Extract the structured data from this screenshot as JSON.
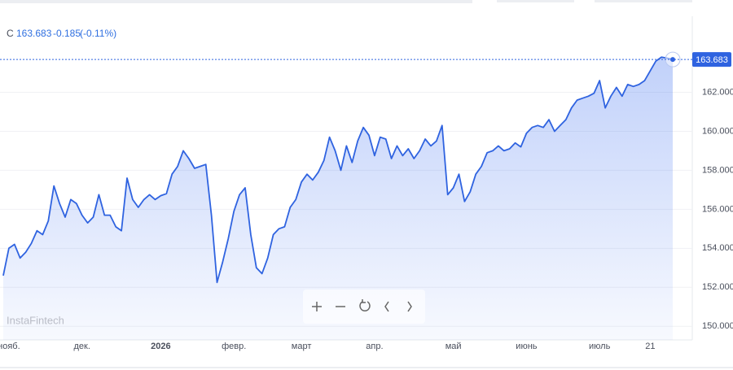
{
  "chart_data": {
    "type": "line",
    "header": {
      "symbol": "C",
      "last": "163.683",
      "change": "-0.185",
      "change_pct": "(-0.11%)"
    },
    "watermark": "InstaFintech",
    "last_price": {
      "value": 163.683,
      "label": "163.683"
    },
    "categories": [
      null,
      "нояб.",
      null,
      null,
      null,
      null,
      null,
      null,
      null,
      null,
      null,
      null,
      null,
      null,
      "дек.",
      null,
      null,
      null,
      null,
      null,
      null,
      null,
      null,
      null,
      null,
      null,
      null,
      null,
      "2026",
      null,
      null,
      null,
      null,
      null,
      null,
      null,
      null,
      null,
      null,
      null,
      null,
      "февр.",
      null,
      null,
      null,
      null,
      null,
      null,
      null,
      null,
      null,
      null,
      null,
      "март",
      null,
      null,
      null,
      null,
      null,
      null,
      null,
      null,
      null,
      null,
      null,
      null,
      "апр.",
      null,
      null,
      null,
      null,
      null,
      null,
      null,
      null,
      null,
      null,
      null,
      null,
      null,
      "май",
      null,
      null,
      null,
      null,
      null,
      null,
      null,
      null,
      null,
      null,
      null,
      null,
      "июнь",
      null,
      null,
      null,
      null,
      null,
      null,
      null,
      null,
      null,
      null,
      null,
      null,
      "июль",
      null,
      null,
      null,
      null,
      null,
      null,
      null,
      null,
      "21",
      null,
      null,
      null,
      null
    ],
    "series": [
      {
        "color": "#2f63e0",
        "values": [
          152.6,
          154.0,
          154.2,
          153.5,
          153.8,
          154.25,
          154.9,
          154.7,
          155.4,
          157.2,
          156.3,
          155.6,
          156.5,
          156.3,
          155.7,
          155.3,
          155.6,
          156.75,
          155.7,
          155.7,
          155.1,
          154.9,
          157.6,
          156.5,
          156.1,
          156.5,
          156.75,
          156.5,
          156.7,
          156.8,
          157.8,
          158.2,
          159.0,
          158.6,
          158.1,
          158.2,
          158.3,
          155.7,
          152.25,
          153.3,
          154.5,
          155.9,
          156.75,
          157.1,
          154.7,
          153.0,
          152.7,
          153.5,
          154.7,
          155.0,
          155.1,
          156.1,
          156.5,
          157.4,
          157.8,
          157.5,
          157.9,
          158.5,
          159.7,
          159.0,
          158.0,
          159.25,
          158.4,
          159.5,
          160.2,
          159.8,
          158.75,
          159.7,
          159.6,
          158.6,
          159.25,
          158.75,
          159.1,
          158.6,
          159.0,
          159.6,
          159.25,
          159.5,
          160.3,
          156.75,
          157.1,
          157.8,
          156.4,
          156.9,
          157.8,
          158.2,
          158.9,
          159.0,
          159.25,
          159.0,
          159.1,
          159.4,
          159.2,
          159.9,
          160.2,
          160.3,
          160.2,
          160.6,
          160.0,
          160.3,
          160.6,
          161.2,
          161.6,
          161.7,
          161.8,
          161.95,
          162.6,
          161.2,
          161.8,
          162.25,
          161.8,
          162.4,
          162.3,
          162.4,
          162.6,
          163.1,
          163.6,
          163.8,
          163.75,
          163.683
        ]
      }
    ],
    "ylim": [
      149.3,
      165.9
    ],
    "yticks": [
      {
        "value": 150,
        "label": "150.000"
      },
      {
        "value": 152,
        "label": "152.000"
      },
      {
        "value": 154,
        "label": "154.000"
      },
      {
        "value": 156,
        "label": "156.000"
      },
      {
        "value": 158,
        "label": "158.000"
      },
      {
        "value": 160,
        "label": "160.000"
      },
      {
        "value": 162,
        "label": "162.000"
      }
    ],
    "grid": true
  }
}
